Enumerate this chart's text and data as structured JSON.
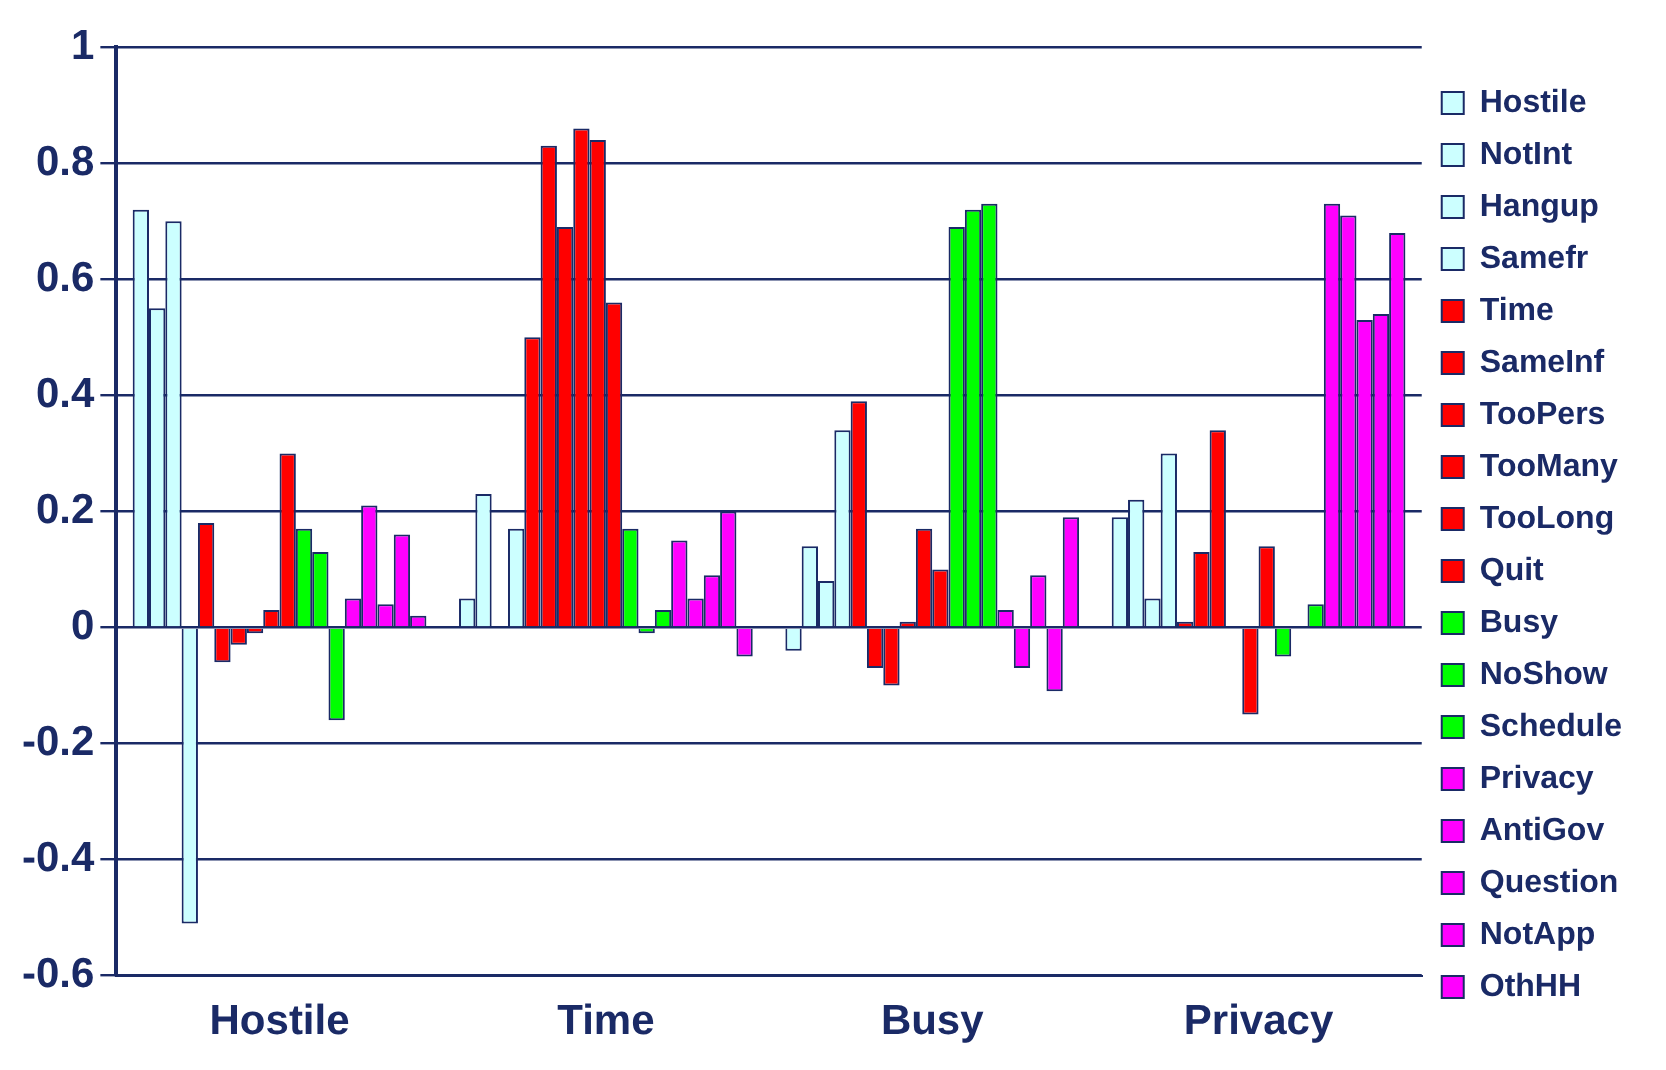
{
  "chart_data": {
    "type": "bar",
    "categories": [
      "Hostile",
      "Time",
      "Busy",
      "Privacy"
    ],
    "series": [
      {
        "name": "Hostile",
        "color": "#ccffff",
        "values": [
          0.72,
          0.05,
          -0.04,
          0.19
        ]
      },
      {
        "name": "NotInt",
        "color": "#ccffff",
        "values": [
          0.55,
          0.23,
          0.14,
          0.22
        ]
      },
      {
        "name": "Hangup",
        "color": "#ccffff",
        "values": [
          0.7,
          0,
          0.08,
          0.05
        ]
      },
      {
        "name": "Samefr",
        "color": "#ccffff",
        "values": [
          -0.51,
          0.17,
          0.34,
          0.3
        ]
      },
      {
        "name": "Time",
        "color": "#ff0000",
        "values": [
          0.18,
          0.5,
          0.39,
          0.01
        ]
      },
      {
        "name": "SameInf",
        "color": "#ff0000",
        "values": [
          -0.06,
          0.83,
          -0.07,
          0.13
        ]
      },
      {
        "name": "TooPers",
        "color": "#ff0000",
        "values": [
          -0.03,
          0.69,
          -0.1,
          0.34
        ]
      },
      {
        "name": "TooMany",
        "color": "#ff0000",
        "values": [
          -0.01,
          0.86,
          0.01,
          0
        ]
      },
      {
        "name": "TooLong",
        "color": "#ff0000",
        "values": [
          0.03,
          0.84,
          0.17,
          -0.15
        ]
      },
      {
        "name": "Quit",
        "color": "#ff0000",
        "values": [
          0.3,
          0.56,
          0.1,
          0.14
        ]
      },
      {
        "name": "Busy",
        "color": "#00ff00",
        "values": [
          0.17,
          0.17,
          0.69,
          -0.05
        ]
      },
      {
        "name": "NoShow",
        "color": "#00ff00",
        "values": [
          0.13,
          -0.01,
          0.72,
          0
        ]
      },
      {
        "name": "Schedule",
        "color": "#00ff00",
        "values": [
          -0.16,
          0.03,
          0.73,
          0.04
        ]
      },
      {
        "name": "Privacy",
        "color": "#ff00ff",
        "values": [
          0.05,
          0.15,
          0.03,
          0.73
        ]
      },
      {
        "name": "AntiGov",
        "color": "#ff00ff",
        "values": [
          0.21,
          0.05,
          -0.07,
          0.71
        ]
      },
      {
        "name": "Question",
        "color": "#ff00ff",
        "values": [
          0.04,
          0.09,
          0.09,
          0.53
        ]
      },
      {
        "name": "NotApp",
        "color": "#ff00ff",
        "values": [
          0.16,
          0.2,
          -0.11,
          0.54
        ]
      },
      {
        "name": "OthHH",
        "color": "#ff00ff",
        "values": [
          0.02,
          -0.05,
          0.19,
          0.68
        ]
      }
    ],
    "ylim": [
      -0.6,
      1
    ],
    "yticks": [
      -0.6,
      -0.4,
      -0.2,
      0,
      0.2,
      0.4,
      0.6,
      0.8,
      1
    ],
    "grid": "y",
    "legend": "right"
  }
}
